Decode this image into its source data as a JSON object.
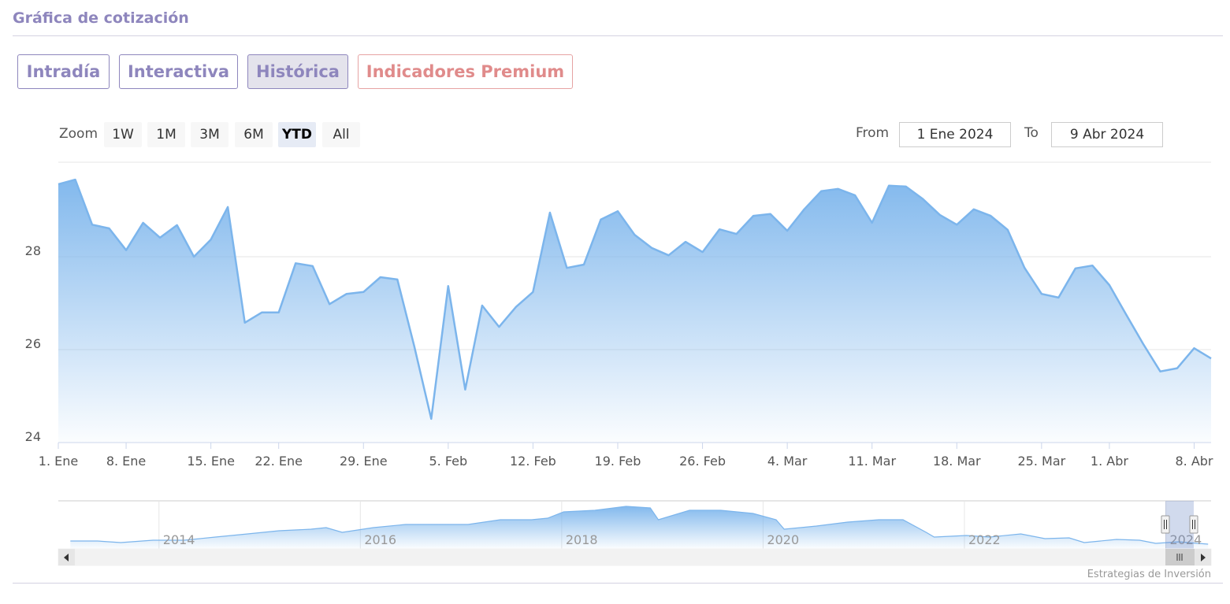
{
  "header": {
    "title": "Gráfica de cotización"
  },
  "tabs": [
    "Intradía",
    "Interactiva",
    "Histórica",
    "Indicadores Premium"
  ],
  "active_tab": 2,
  "range_selector": {
    "label": "Zoom",
    "buttons": [
      "1W",
      "1M",
      "3M",
      "6M",
      "YTD",
      "All"
    ],
    "selected": 4,
    "from_label": "From",
    "from": "1 Ene 2024",
    "to_label": "To",
    "to": "9 Abr 2024"
  },
  "chart_data": {
    "type": "area",
    "color": "#7cb5ec",
    "categories": [
      "1. Ene",
      null,
      null,
      null,
      "8. Ene",
      null,
      null,
      null,
      null,
      "15. Ene",
      null,
      null,
      null,
      "22. Ene",
      null,
      null,
      null,
      null,
      "29. Ene",
      null,
      null,
      null,
      null,
      "5. Feb",
      null,
      null,
      null,
      null,
      "12. Feb",
      null,
      null,
      null,
      null,
      "19. Feb",
      null,
      null,
      null,
      null,
      "26. Feb",
      null,
      null,
      null,
      null,
      "4. Mar",
      null,
      null,
      null,
      null,
      "11. Mar",
      null,
      null,
      null,
      null,
      "18. Mar",
      null,
      null,
      null,
      null,
      "25. Mar",
      null,
      null,
      null,
      "1. Abr",
      null,
      null,
      null,
      null,
      "8. Abr",
      null
    ],
    "values": [
      29.56,
      29.66,
      28.69,
      28.61,
      28.14,
      28.73,
      28.41,
      28.68,
      28.0,
      28.37,
      29.07,
      26.58,
      26.8,
      26.8,
      27.86,
      27.8,
      26.98,
      27.2,
      27.24,
      27.56,
      27.51,
      26.07,
      24.51,
      27.37,
      25.14,
      26.95,
      26.49,
      26.92,
      27.24,
      28.95,
      27.76,
      27.83,
      28.8,
      28.98,
      28.47,
      28.19,
      28.03,
      28.32,
      28.1,
      28.59,
      28.49,
      28.88,
      28.92,
      28.56,
      29.02,
      29.41,
      29.46,
      29.32,
      28.73,
      29.53,
      29.51,
      29.24,
      28.9,
      28.69,
      29.02,
      28.88,
      28.58,
      27.76,
      27.2,
      27.12,
      27.75,
      27.81,
      27.39,
      26.75,
      26.12,
      25.53,
      25.6,
      26.03,
      25.81
    ],
    "ylim": [
      24,
      30
    ],
    "yticks": [
      24,
      26,
      28
    ],
    "grid": true
  },
  "navigator": {
    "type": "area",
    "color": "#7cb5ec",
    "x": [
      2013.12,
      2013.39,
      2013.62,
      2013.94,
      2014.25,
      2014.56,
      2014.88,
      2015.19,
      2015.51,
      2015.66,
      2015.82,
      2016.13,
      2016.45,
      2016.76,
      2017.07,
      2017.39,
      2017.7,
      2017.86,
      2018.02,
      2018.33,
      2018.64,
      2018.88,
      2018.96,
      2019.27,
      2019.58,
      2019.9,
      2020.13,
      2020.21,
      2020.53,
      2020.84,
      2021.15,
      2021.39,
      2021.62,
      2021.7,
      2022.02,
      2022.25,
      2022.56,
      2022.8,
      2023.04,
      2023.19,
      2023.51,
      2023.74,
      2023.9,
      2024.13,
      2024.42
    ],
    "values": [
      25.28,
      25.28,
      24.62,
      25.61,
      25.61,
      26.92,
      28.23,
      29.54,
      30.2,
      30.85,
      28.89,
      30.85,
      32.16,
      32.16,
      32.16,
      34.13,
      34.13,
      34.79,
      37.41,
      38.07,
      39.7,
      39.05,
      34.13,
      38.07,
      38.07,
      36.75,
      34.13,
      30.2,
      31.51,
      33.15,
      34.13,
      34.13,
      28.89,
      26.92,
      27.57,
      26.92,
      28.23,
      26.26,
      26.59,
      24.62,
      25.93,
      25.61,
      24.3,
      24.95,
      23.97
    ],
    "xlim": [
      2013,
      2024.45
    ],
    "ylim": [
      22,
      42
    ],
    "xticks": [
      2014,
      2016,
      2018,
      2020,
      2022,
      2024
    ]
  },
  "credits": "Estrategias de Inversión"
}
